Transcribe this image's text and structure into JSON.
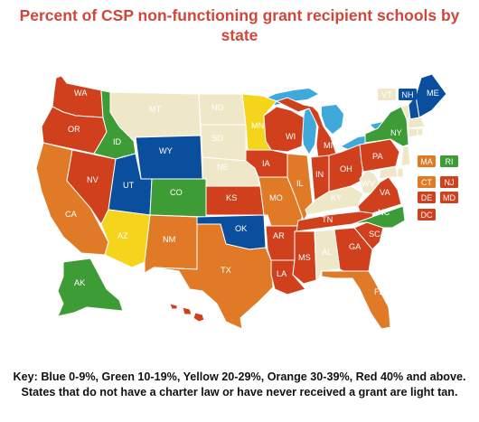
{
  "title": "Percent of CSP non-functioning grant recipient schools by state",
  "key": "Key: Blue 0-9%, Green 10-19%, Yellow 20-29%, Orange 30-39%, Red 40% and above. States that do not have a charter law or have never received a grant are light tan.",
  "colors": {
    "blue": "#0a4f9e",
    "green": "#3e9c36",
    "yellow": "#f4d51c",
    "orange": "#e07a26",
    "red": "#d0401c",
    "tan": "#efe8c8",
    "water": "#3fa9dc"
  },
  "states": {
    "WA": "red",
    "OR": "red",
    "CA": "orange",
    "NV": "red",
    "ID": "green",
    "MT": "tan",
    "WY": "blue",
    "UT": "blue",
    "AZ": "yellow",
    "CO": "green",
    "NM": "orange",
    "ND": "tan",
    "SD": "tan",
    "NE": "tan",
    "KS": "red",
    "OK": "blue",
    "TX": "orange",
    "MN": "yellow",
    "IA": "red",
    "MO": "orange",
    "AR": "red",
    "LA": "red",
    "WI": "red",
    "IL": "orange",
    "MS": "red",
    "MI": "red",
    "IN": "red",
    "KY": "tan",
    "TN": "red",
    "AL": "tan",
    "OH": "red",
    "GA": "red",
    "FL": "orange",
    "SC": "red",
    "NC": "green",
    "VA": "red",
    "WV": "tan",
    "PA": "red",
    "NY": "green",
    "VT": "tan",
    "NH": "blue",
    "ME": "blue",
    "AK": "green",
    "HI": "red"
  },
  "small_states": [
    {
      "abbr": "VT",
      "color": "tan"
    },
    {
      "abbr": "NH",
      "color": "blue"
    },
    {
      "abbr": "MA",
      "color": "orange"
    },
    {
      "abbr": "RI",
      "color": "green"
    },
    {
      "abbr": "CT",
      "color": "orange"
    },
    {
      "abbr": "NJ",
      "color": "red"
    },
    {
      "abbr": "DE",
      "color": "red"
    },
    {
      "abbr": "MD",
      "color": "red"
    },
    {
      "abbr": "DC",
      "color": "red"
    }
  ]
}
